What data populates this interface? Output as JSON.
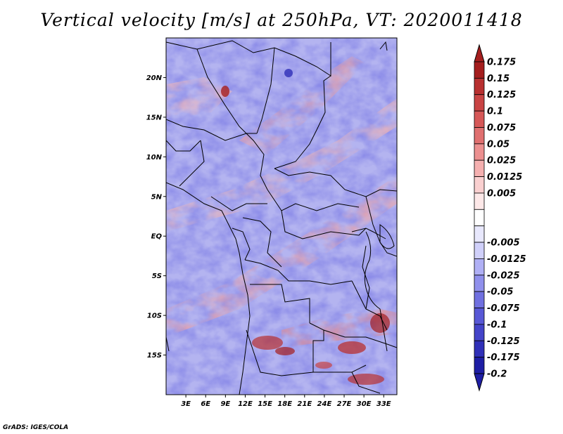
{
  "title": "Vertical velocity [m/s] at 250hPa, VT: 2020011418",
  "credit": "GrADS: IGES/COLA",
  "map": {
    "lon_range": [
      0,
      35
    ],
    "lat_range": [
      -20,
      25
    ],
    "lat_ticks": [
      {
        "value": 20,
        "label": "20N"
      },
      {
        "value": 15,
        "label": "15N"
      },
      {
        "value": 10,
        "label": "10N"
      },
      {
        "value": 5,
        "label": "5N"
      },
      {
        "value": 0,
        "label": "EQ"
      },
      {
        "value": -5,
        "label": "5S"
      },
      {
        "value": -10,
        "label": "10S"
      },
      {
        "value": -15,
        "label": "15S"
      }
    ],
    "lon_ticks": [
      {
        "value": 3,
        "label": "3E"
      },
      {
        "value": 6,
        "label": "6E"
      },
      {
        "value": 9,
        "label": "9E"
      },
      {
        "value": 12,
        "label": "12E"
      },
      {
        "value": 15,
        "label": "15E"
      },
      {
        "value": 18,
        "label": "18E"
      },
      {
        "value": 21,
        "label": "21E"
      },
      {
        "value": 24,
        "label": "24E"
      },
      {
        "value": 27,
        "label": "27E"
      },
      {
        "value": 30,
        "label": "30E"
      },
      {
        "value": 33,
        "label": "33E"
      }
    ]
  },
  "colorbar": {
    "levels": [
      {
        "label": "0.175",
        "color": "#a51e1e"
      },
      {
        "label": "0.15",
        "color": "#b83030"
      },
      {
        "label": "0.125",
        "color": "#c94444"
      },
      {
        "label": "0.1",
        "color": "#d65858"
      },
      {
        "label": "0.075",
        "color": "#e07070"
      },
      {
        "label": "0.05",
        "color": "#ec9090"
      },
      {
        "label": "0.025",
        "color": "#f5b0b0"
      },
      {
        "label": "0.0125",
        "color": "#fad0d0"
      },
      {
        "label": "0.005",
        "color": "#fde8e8"
      },
      {
        "label": "",
        "color": "#ffffff"
      },
      {
        "label": "-0.005",
        "color": "#e8e8fd"
      },
      {
        "label": "-0.0125",
        "color": "#d0d0fa"
      },
      {
        "label": "-0.025",
        "color": "#b0b0f5"
      },
      {
        "label": "-0.05",
        "color": "#9090ec"
      },
      {
        "label": "-0.075",
        "color": "#7070e0"
      },
      {
        "label": "-0.1",
        "color": "#5858d6"
      },
      {
        "label": "-0.125",
        "color": "#4444c9"
      },
      {
        "label": "-0.175",
        "color": "#3030b8"
      },
      {
        "label": "-0.2",
        "color": "#1e1ea5"
      }
    ],
    "top_arrow_color": "#a51e1e",
    "bottom_arrow_color": "#1e1ea5"
  }
}
